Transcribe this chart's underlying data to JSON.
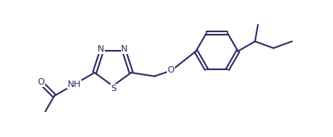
{
  "figsize": [
    4.13,
    1.7
  ],
  "dpi": 100,
  "bg": "#ffffff",
  "bc": "#2d2966",
  "lw": 1.4,
  "fs": 8.0,
  "xlim": [
    -0.15,
    3.55
  ],
  "ylim": [
    -0.05,
    1.45
  ]
}
